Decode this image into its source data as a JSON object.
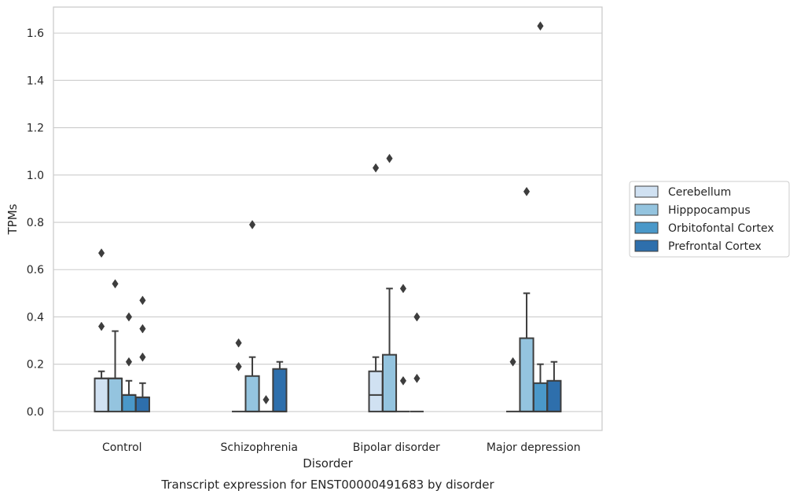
{
  "chart_data": {
    "type": "box",
    "title": "Transcript expression for ENST00000491683 by disorder",
    "xlabel": "Disorder",
    "ylabel": "TPMs",
    "ylim": [
      -0.08,
      1.71
    ],
    "yticks": [
      "0.0",
      "0.2",
      "0.4",
      "0.6",
      "0.8",
      "1.0",
      "1.2",
      "1.4",
      "1.6"
    ],
    "grid": true,
    "legend_position": "right",
    "categories": [
      "Control",
      "Schizophrenia",
      "Bipolar disorder",
      "Major depression"
    ],
    "series": [
      {
        "name": "Cerebellum",
        "color": "#d0e1f2",
        "boxes": [
          {
            "q1": 0.0,
            "median": 0.14,
            "q3": 0.14,
            "whislo": 0.0,
            "whishi": 0.17,
            "fliers": [
              0.36,
              0.67
            ]
          },
          {
            "q1": 0.0,
            "median": 0.0,
            "q3": 0.0,
            "whislo": 0.0,
            "whishi": 0.0,
            "fliers": [
              0.19,
              0.29
            ]
          },
          {
            "q1": 0.0,
            "median": 0.07,
            "q3": 0.17,
            "whislo": 0.0,
            "whishi": 0.23,
            "fliers": [
              1.03
            ]
          },
          {
            "q1": 0.0,
            "median": 0.0,
            "q3": 0.0,
            "whislo": 0.0,
            "whishi": 0.0,
            "fliers": [
              0.21
            ]
          }
        ]
      },
      {
        "name": "Hipppocampus",
        "color": "#94c4df",
        "boxes": [
          {
            "q1": 0.0,
            "median": 0.14,
            "q3": 0.14,
            "whislo": 0.0,
            "whishi": 0.34,
            "fliers": [
              0.54
            ]
          },
          {
            "q1": 0.0,
            "median": 0.0,
            "q3": 0.15,
            "whislo": 0.0,
            "whishi": 0.23,
            "fliers": [
              0.79
            ]
          },
          {
            "q1": 0.0,
            "median": 0.0,
            "q3": 0.24,
            "whislo": 0.0,
            "whishi": 0.52,
            "fliers": [
              1.07
            ]
          },
          {
            "q1": 0.0,
            "median": 0.0,
            "q3": 0.31,
            "whislo": 0.0,
            "whishi": 0.5,
            "fliers": [
              0.93
            ]
          }
        ]
      },
      {
        "name": "Orbitofontal Cortex",
        "color": "#4a98c9",
        "boxes": [
          {
            "q1": 0.0,
            "median": 0.07,
            "q3": 0.07,
            "whislo": 0.0,
            "whishi": 0.13,
            "fliers": [
              0.21,
              0.4
            ]
          },
          {
            "q1": 0.0,
            "median": 0.0,
            "q3": 0.0,
            "whislo": 0.0,
            "whishi": 0.0,
            "fliers": [
              0.05
            ]
          },
          {
            "q1": 0.0,
            "median": 0.0,
            "q3": 0.0,
            "whislo": 0.0,
            "whishi": 0.0,
            "fliers": [
              0.13,
              0.52
            ]
          },
          {
            "q1": 0.0,
            "median": 0.0,
            "q3": 0.12,
            "whislo": 0.0,
            "whishi": 0.2,
            "fliers": [
              1.63
            ]
          }
        ]
      },
      {
        "name": "Prefrontal Cortex",
        "color": "#2e6fac",
        "boxes": [
          {
            "q1": 0.0,
            "median": 0.06,
            "q3": 0.06,
            "whislo": 0.0,
            "whishi": 0.12,
            "fliers": [
              0.23,
              0.35,
              0.47
            ]
          },
          {
            "q1": 0.0,
            "median": 0.0,
            "q3": 0.18,
            "whislo": 0.0,
            "whishi": 0.21,
            "fliers": []
          },
          {
            "q1": 0.0,
            "median": 0.0,
            "q3": 0.0,
            "whislo": 0.0,
            "whishi": 0.0,
            "fliers": [
              0.14,
              0.4
            ]
          },
          {
            "q1": 0.0,
            "median": 0.0,
            "q3": 0.13,
            "whislo": 0.0,
            "whishi": 0.21,
            "fliers": []
          }
        ]
      }
    ]
  }
}
